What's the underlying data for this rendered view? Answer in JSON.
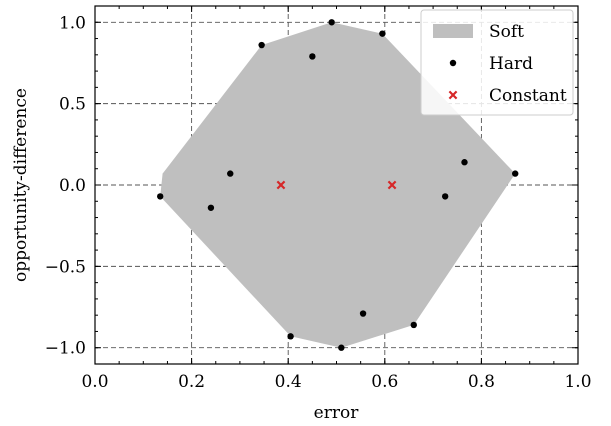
{
  "chart_data": {
    "type": "scatter",
    "xlabel": "error",
    "ylabel": "opportunity-difference",
    "xlim": [
      0.0,
      1.0
    ],
    "ylim": [
      -1.1,
      1.1
    ],
    "xticks": [
      0.0,
      0.2,
      0.4,
      0.6,
      0.8,
      1.0
    ],
    "xtick_labels": [
      "0.0",
      "0.2",
      "0.4",
      "0.6",
      "0.8",
      "1.0"
    ],
    "yticks": [
      -1.0,
      -0.5,
      0.0,
      0.5,
      1.0
    ],
    "ytick_labels": [
      "−1.0",
      "−0.5",
      "0.0",
      "0.5",
      "1.0"
    ],
    "grid": true,
    "legend_position": "top-right",
    "series": [
      {
        "name": "Soft",
        "kind": "area",
        "color": "#bfbfbf",
        "points": [
          [
            0.135,
            -0.07
          ],
          [
            0.14,
            0.07
          ],
          [
            0.345,
            0.86
          ],
          [
            0.49,
            1.0
          ],
          [
            0.595,
            0.93
          ],
          [
            0.87,
            0.07
          ],
          [
            0.66,
            -0.86
          ],
          [
            0.51,
            -1.0
          ],
          [
            0.405,
            -0.93
          ]
        ]
      },
      {
        "name": "Hard",
        "kind": "scatter",
        "marker": "dot",
        "color": "#000000",
        "points": [
          [
            0.49,
            1.0
          ],
          [
            0.595,
            0.93
          ],
          [
            0.345,
            0.86
          ],
          [
            0.45,
            0.79
          ],
          [
            0.765,
            0.14
          ],
          [
            0.87,
            0.07
          ],
          [
            0.28,
            0.07
          ],
          [
            0.135,
            -0.07
          ],
          [
            0.725,
            -0.07
          ],
          [
            0.24,
            -0.14
          ],
          [
            0.555,
            -0.79
          ],
          [
            0.66,
            -0.86
          ],
          [
            0.405,
            -0.93
          ],
          [
            0.51,
            -1.0
          ]
        ]
      },
      {
        "name": "Constant",
        "kind": "scatter",
        "marker": "x",
        "color": "#d62728",
        "points": [
          [
            0.385,
            0.0
          ],
          [
            0.615,
            0.0
          ]
        ]
      }
    ]
  }
}
